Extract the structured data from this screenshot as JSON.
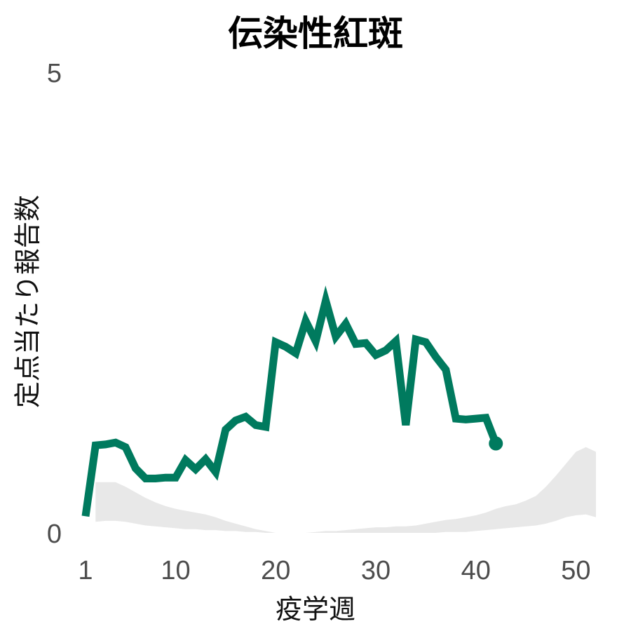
{
  "chart_data": {
    "type": "line",
    "title": "伝染性紅斑",
    "xlabel": "疫学週",
    "ylabel": "定点当たり報告数",
    "xlim": [
      1,
      52
    ],
    "ylim": [
      0,
      5
    ],
    "x_ticks": [
      1,
      10,
      20,
      30,
      40,
      50
    ],
    "y_ticks": [
      0,
      5
    ],
    "grid": false,
    "legend": "none",
    "series": [
      {
        "color": "#007a5e",
        "x": [
          1,
          2,
          3,
          4,
          5,
          6,
          7,
          8,
          9,
          10,
          11,
          12,
          13,
          14,
          15,
          16,
          17,
          18,
          19,
          20,
          21,
          22,
          23,
          24,
          25,
          26,
          27,
          28,
          29,
          30,
          31,
          32,
          33,
          34,
          35,
          36,
          37,
          38,
          39,
          40,
          41,
          42
        ],
        "y": [
          0.18,
          0.95,
          0.96,
          0.98,
          0.93,
          0.7,
          0.59,
          0.59,
          0.6,
          0.6,
          0.79,
          0.69,
          0.8,
          0.66,
          1.12,
          1.22,
          1.26,
          1.17,
          1.15,
          2.07,
          2.02,
          1.95,
          2.3,
          2.08,
          2.52,
          2.13,
          2.27,
          2.05,
          2.06,
          1.93,
          1.98,
          2.08,
          1.17,
          2.1,
          2.07,
          1.91,
          1.77,
          1.24,
          1.23,
          1.24,
          1.25,
          0.97
        ]
      }
    ],
    "band": {
      "color": "#e8e8e8",
      "x": [
        2,
        3,
        4,
        5,
        6,
        7,
        8,
        9,
        10,
        11,
        12,
        13,
        14,
        15,
        16,
        17,
        18,
        19,
        20,
        21,
        22,
        23,
        24,
        25,
        26,
        27,
        28,
        29,
        30,
        31,
        32,
        33,
        34,
        35,
        36,
        37,
        38,
        39,
        40,
        41,
        42,
        43,
        44,
        45,
        46,
        47,
        48,
        49,
        50,
        51,
        52
      ],
      "upper": [
        0.55,
        0.55,
        0.55,
        0.5,
        0.44,
        0.38,
        0.33,
        0.29,
        0.26,
        0.24,
        0.22,
        0.2,
        0.17,
        0.13,
        0.1,
        0.07,
        0.04,
        0.02,
        0.0,
        0.0,
        0.0,
        0.0,
        0.01,
        0.02,
        0.02,
        0.03,
        0.04,
        0.05,
        0.06,
        0.06,
        0.07,
        0.07,
        0.08,
        0.1,
        0.12,
        0.14,
        0.15,
        0.17,
        0.19,
        0.22,
        0.26,
        0.29,
        0.31,
        0.35,
        0.4,
        0.5,
        0.62,
        0.75,
        0.88,
        0.93,
        0.88
      ],
      "lower": [
        0.12,
        0.13,
        0.13,
        0.12,
        0.1,
        0.08,
        0.07,
        0.06,
        0.05,
        0.04,
        0.04,
        0.03,
        0.03,
        0.02,
        0.02,
        0.01,
        0.01,
        0.0,
        0.0,
        0.0,
        0.0,
        0.0,
        0.0,
        0.0,
        0.0,
        0.0,
        0.0,
        0.0,
        0.0,
        0.0,
        0.0,
        0.0,
        0.0,
        0.0,
        0.0,
        0.01,
        0.01,
        0.01,
        0.02,
        0.03,
        0.04,
        0.05,
        0.06,
        0.07,
        0.08,
        0.1,
        0.13,
        0.17,
        0.19,
        0.2,
        0.17
      ]
    }
  }
}
